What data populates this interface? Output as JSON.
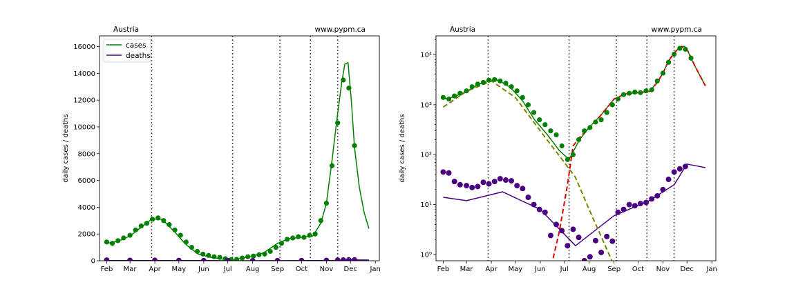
{
  "colors": {
    "cases": "#008000",
    "deaths": "#4b0082",
    "model_red": "#e00000",
    "model_olive": "#808000",
    "boundary": "#555555"
  },
  "chart_data": [
    {
      "type": "scatter",
      "panel": "left",
      "title_left": "Austria",
      "title_right": "www.pypm.ca",
      "xlabel": "",
      "ylabel": "daily cases / deaths",
      "yscale": "linear",
      "ylim": [
        0,
        16800
      ],
      "xlim": [
        "2020-01-23",
        "2021-01-06"
      ],
      "x_ticks": [
        "2020-02-01",
        "2020-03-01",
        "2020-04-01",
        "2020-05-01",
        "2020-06-01",
        "2020-07-01",
        "2020-08-01",
        "2020-09-01",
        "2020-10-01",
        "2020-11-01",
        "2020-12-01",
        "2021-01-01"
      ],
      "x_tick_labels": [
        "Feb",
        "Mar",
        "Apr",
        "May",
        "Jun",
        "Jul",
        "Aug",
        "Sep",
        "Oct",
        "Nov",
        "Dec",
        "Jan"
      ],
      "y_ticks": [
        0,
        2000,
        4000,
        6000,
        8000,
        10000,
        12000,
        14000,
        16000
      ],
      "y_tick_labels": [
        "0",
        "2000",
        "4000",
        "6000",
        "8000",
        "10000",
        "12000",
        "14000",
        "16000"
      ],
      "boundaries": [
        "2020-03-28",
        "2020-07-07",
        "2020-09-04",
        "2020-10-12",
        "2020-11-15"
      ],
      "legend": {
        "location": "upper left",
        "entries": [
          "cases",
          "deaths"
        ]
      },
      "series": [
        {
          "name": "cases",
          "kind": "model-line",
          "x": [
            "2020-02-01",
            "2020-02-15",
            "2020-03-01",
            "2020-03-15",
            "2020-03-28",
            "2020-04-10",
            "2020-04-25",
            "2020-05-10",
            "2020-05-25",
            "2020-06-10",
            "2020-06-25",
            "2020-07-07",
            "2020-07-20",
            "2020-08-01",
            "2020-08-15",
            "2020-09-01",
            "2020-09-15",
            "2020-10-01",
            "2020-10-15",
            "2020-10-25",
            "2020-11-01",
            "2020-11-08",
            "2020-11-15",
            "2020-11-20",
            "2020-11-24",
            "2020-11-28",
            "2020-12-02",
            "2020-12-06",
            "2020-12-12",
            "2020-12-18",
            "2020-12-24"
          ],
          "values": [
            1300,
            1450,
            1850,
            2500,
            3100,
            3100,
            2200,
            1200,
            500,
            250,
            120,
            80,
            200,
            350,
            600,
            1300,
            1650,
            1750,
            1850,
            2800,
            4300,
            7500,
            11000,
            13300,
            14700,
            14800,
            12000,
            8500,
            5500,
            3600,
            2400
          ]
        },
        {
          "name": "deaths",
          "kind": "model-line",
          "x": [
            "2020-02-01",
            "2020-03-01",
            "2020-04-15",
            "2020-06-01",
            "2020-07-15",
            "2020-09-01",
            "2020-10-15",
            "2020-11-15",
            "2020-12-01",
            "2020-12-24"
          ],
          "values": [
            14,
            12,
            18,
            8,
            1.5,
            6,
            12,
            25,
            65,
            55
          ]
        },
        {
          "name": "cases",
          "kind": "weekly-avg-markers",
          "x": [
            "2020-02-01",
            "2020-02-08",
            "2020-02-15",
            "2020-02-22",
            "2020-03-01",
            "2020-03-08",
            "2020-03-15",
            "2020-03-22",
            "2020-03-29",
            "2020-04-05",
            "2020-04-12",
            "2020-04-19",
            "2020-04-26",
            "2020-05-03",
            "2020-05-10",
            "2020-05-17",
            "2020-05-24",
            "2020-05-31",
            "2020-06-07",
            "2020-06-14",
            "2020-06-21",
            "2020-06-28",
            "2020-07-05",
            "2020-07-12",
            "2020-07-19",
            "2020-07-26",
            "2020-08-02",
            "2020-08-09",
            "2020-08-16",
            "2020-08-23",
            "2020-08-30",
            "2020-09-06",
            "2020-09-13",
            "2020-09-20",
            "2020-09-27",
            "2020-10-04",
            "2020-10-11",
            "2020-10-18",
            "2020-10-25",
            "2020-11-01",
            "2020-11-08",
            "2020-11-15",
            "2020-11-22",
            "2020-11-29",
            "2020-12-06"
          ],
          "values": [
            1400,
            1300,
            1500,
            1700,
            1900,
            2300,
            2600,
            2800,
            3100,
            3200,
            3000,
            2700,
            2300,
            1900,
            1400,
            1000,
            700,
            500,
            400,
            300,
            250,
            150,
            80,
            100,
            200,
            300,
            350,
            450,
            500,
            700,
            1000,
            1300,
            1600,
            1700,
            1800,
            1750,
            1900,
            2000,
            3000,
            4300,
            7100,
            10300,
            13500,
            12900,
            8600
          ]
        },
        {
          "name": "deaths",
          "kind": "weekly-avg-markers",
          "x": [
            "2020-02-01",
            "2020-03-01",
            "2020-04-01",
            "2020-05-01",
            "2020-06-01",
            "2020-07-01",
            "2020-08-01",
            "2020-09-01",
            "2020-10-01",
            "2020-11-01",
            "2020-11-15",
            "2020-11-22",
            "2020-11-29",
            "2020-12-06"
          ],
          "values": [
            45,
            25,
            30,
            20,
            7,
            2,
            1.5,
            7,
            11,
            20,
            42,
            50,
            58,
            60
          ]
        }
      ]
    },
    {
      "type": "scatter",
      "panel": "right",
      "title_left": "Austria",
      "title_right": "www.pypm.ca",
      "xlabel": "",
      "ylabel": "daily cases / deaths",
      "yscale": "log",
      "ylim": [
        0.75,
        24000
      ],
      "xlim": [
        "2020-01-23",
        "2021-01-06"
      ],
      "x_ticks": [
        "2020-02-01",
        "2020-03-01",
        "2020-04-01",
        "2020-05-01",
        "2020-06-01",
        "2020-07-01",
        "2020-08-01",
        "2020-09-01",
        "2020-10-01",
        "2020-11-01",
        "2020-12-01",
        "2021-01-01"
      ],
      "x_tick_labels": [
        "Feb",
        "Mar",
        "Apr",
        "May",
        "Jun",
        "Jul",
        "Aug",
        "Sep",
        "Oct",
        "Nov",
        "Dec",
        "Jan"
      ],
      "y_ticks": [
        1,
        10,
        100,
        1000,
        10000
      ],
      "y_tick_labels": [
        "10⁰",
        "10¹",
        "10²",
        "10³",
        "10⁴"
      ],
      "boundaries": [
        "2020-03-28",
        "2020-07-07",
        "2020-09-04",
        "2020-10-12",
        "2020-11-15"
      ],
      "series": [
        {
          "name": "cases",
          "kind": "model-line",
          "x": [
            "2020-02-01",
            "2020-02-15",
            "2020-03-01",
            "2020-03-15",
            "2020-03-28",
            "2020-04-10",
            "2020-04-25",
            "2020-05-10",
            "2020-05-25",
            "2020-06-10",
            "2020-06-25",
            "2020-07-07",
            "2020-07-20",
            "2020-08-01",
            "2020-08-15",
            "2020-09-01",
            "2020-09-15",
            "2020-10-01",
            "2020-10-15",
            "2020-10-25",
            "2020-11-01",
            "2020-11-08",
            "2020-11-15",
            "2020-11-20",
            "2020-11-24",
            "2020-11-28",
            "2020-12-02",
            "2020-12-06",
            "2020-12-12",
            "2020-12-18",
            "2020-12-24"
          ],
          "values": [
            1300,
            1450,
            1850,
            2500,
            3100,
            3100,
            2200,
            1200,
            500,
            250,
            120,
            80,
            200,
            350,
            600,
            1300,
            1650,
            1750,
            1850,
            2800,
            4300,
            7500,
            11000,
            13300,
            14700,
            14800,
            12000,
            8500,
            5500,
            3600,
            2400
          ]
        },
        {
          "name": "deaths",
          "kind": "model-line",
          "x": [
            "2020-02-01",
            "2020-03-01",
            "2020-04-15",
            "2020-06-01",
            "2020-07-15",
            "2020-09-01",
            "2020-10-15",
            "2020-11-15",
            "2020-12-01",
            "2020-12-24"
          ],
          "values": [
            14,
            12,
            18,
            8,
            1.5,
            6,
            12,
            25,
            65,
            55
          ]
        },
        {
          "name": "",
          "kind": "model-dashed",
          "color_key": "model_red",
          "x": [
            "2020-06-15",
            "2020-06-25",
            "2020-07-05",
            "2020-07-12",
            "2020-07-20",
            "2020-08-01",
            "2020-08-15",
            "2020-09-01",
            "2020-09-15",
            "2020-10-01",
            "2020-10-15",
            "2020-10-25",
            "2020-11-01",
            "2020-11-08",
            "2020-11-15",
            "2020-11-24",
            "2020-12-02",
            "2020-12-12",
            "2020-12-24"
          ],
          "values": [
            0.6,
            3,
            25,
            150,
            220,
            350,
            600,
            1300,
            1650,
            1750,
            1850,
            2800,
            4300,
            7500,
            11000,
            14700,
            12000,
            5500,
            2400
          ]
        },
        {
          "name": "",
          "kind": "model-dashed",
          "color_key": "model_olive",
          "x": [
            "2020-02-01",
            "2020-03-01",
            "2020-04-01",
            "2020-05-01",
            "2020-06-01",
            "2020-07-01",
            "2020-07-15",
            "2020-08-01",
            "2020-08-15",
            "2020-09-01"
          ],
          "values": [
            900,
            1850,
            3000,
            1400,
            300,
            70,
            35,
            8,
            2.5,
            0.6
          ]
        },
        {
          "name": "cases",
          "kind": "weekly-avg-markers",
          "x": [
            "2020-02-01",
            "2020-02-08",
            "2020-02-15",
            "2020-02-22",
            "2020-03-01",
            "2020-03-08",
            "2020-03-15",
            "2020-03-22",
            "2020-03-29",
            "2020-04-05",
            "2020-04-12",
            "2020-04-19",
            "2020-04-26",
            "2020-05-03",
            "2020-05-10",
            "2020-05-17",
            "2020-05-24",
            "2020-05-31",
            "2020-06-07",
            "2020-06-14",
            "2020-06-21",
            "2020-06-28",
            "2020-07-05",
            "2020-07-12",
            "2020-07-19",
            "2020-07-26",
            "2020-08-02",
            "2020-08-09",
            "2020-08-16",
            "2020-08-23",
            "2020-08-30",
            "2020-09-06",
            "2020-09-13",
            "2020-09-20",
            "2020-09-27",
            "2020-10-04",
            "2020-10-11",
            "2020-10-18",
            "2020-10-25",
            "2020-11-01",
            "2020-11-08",
            "2020-11-15",
            "2020-11-22",
            "2020-11-29",
            "2020-12-06"
          ],
          "values": [
            1400,
            1300,
            1500,
            1700,
            1900,
            2300,
            2600,
            2800,
            3100,
            3200,
            3000,
            2700,
            2300,
            1900,
            1400,
            1000,
            700,
            500,
            400,
            300,
            250,
            150,
            80,
            100,
            200,
            300,
            350,
            450,
            500,
            700,
            1000,
            1300,
            1600,
            1700,
            1800,
            1750,
            1900,
            2000,
            3000,
            4300,
            7100,
            10300,
            13500,
            12900,
            8600
          ]
        },
        {
          "name": "deaths",
          "kind": "weekly-avg-markers",
          "x": [
            "2020-02-01",
            "2020-02-08",
            "2020-02-15",
            "2020-02-22",
            "2020-03-01",
            "2020-03-08",
            "2020-03-15",
            "2020-03-22",
            "2020-03-29",
            "2020-04-05",
            "2020-04-12",
            "2020-04-19",
            "2020-04-26",
            "2020-05-03",
            "2020-05-10",
            "2020-05-17",
            "2020-05-24",
            "2020-05-31",
            "2020-06-07",
            "2020-06-14",
            "2020-06-21",
            "2020-06-28",
            "2020-07-05",
            "2020-07-12",
            "2020-07-19",
            "2020-07-26",
            "2020-08-02",
            "2020-08-09",
            "2020-08-16",
            "2020-08-23",
            "2020-08-30",
            "2020-09-06",
            "2020-09-13",
            "2020-09-20",
            "2020-09-27",
            "2020-10-04",
            "2020-10-11",
            "2020-10-18",
            "2020-10-25",
            "2020-11-01",
            "2020-11-08",
            "2020-11-15",
            "2020-11-22",
            "2020-11-29"
          ],
          "values": [
            45,
            43,
            29,
            25,
            24,
            22,
            23,
            28,
            26,
            29,
            33,
            31,
            30,
            24,
            21,
            14,
            10,
            8,
            7,
            2.4,
            4,
            3,
            1.5,
            3.2,
            2.2,
            0.75,
            0.9,
            1.9,
            1.1,
            2.3,
            1.85,
            7,
            8,
            10,
            9.5,
            10.5,
            11,
            13,
            15,
            20,
            32,
            45,
            52,
            58
          ]
        }
      ]
    }
  ]
}
